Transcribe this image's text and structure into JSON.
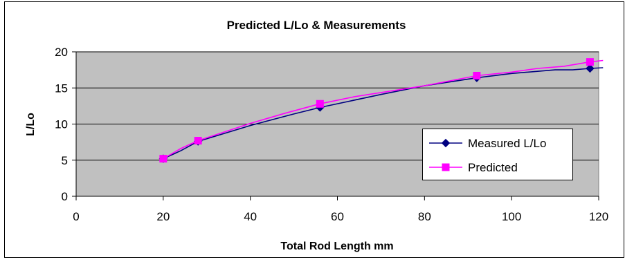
{
  "chart_data": {
    "type": "line",
    "title": "Predicted L/Lo & Measurements",
    "xlabel": "Total Rod Length mm",
    "ylabel": "L/Lo",
    "xlim": [
      0,
      120
    ],
    "ylim": [
      0,
      20
    ],
    "x_ticks": [
      0,
      20,
      40,
      60,
      80,
      100,
      120
    ],
    "y_ticks": [
      0,
      5,
      10,
      15,
      20
    ],
    "grid": "horizontal",
    "legend_position": "lower-right",
    "plot_background": "#c0c0c0",
    "series": [
      {
        "name": "Measured L/Lo",
        "color": "#000080",
        "marker": "diamond",
        "points": [
          [
            20,
            5.2
          ],
          [
            28,
            7.6
          ],
          [
            56,
            12.3
          ],
          [
            92,
            16.4
          ],
          [
            118,
            17.7
          ]
        ],
        "curve": [
          [
            20,
            5.2
          ],
          [
            24,
            6.3
          ],
          [
            28,
            7.6
          ],
          [
            40,
            9.8
          ],
          [
            50,
            11.4
          ],
          [
            56,
            12.3
          ],
          [
            70,
            14.1
          ],
          [
            80,
            15.3
          ],
          [
            92,
            16.4
          ],
          [
            100,
            17.0
          ],
          [
            110,
            17.5
          ],
          [
            114,
            17.5
          ],
          [
            118,
            17.7
          ],
          [
            121,
            17.8
          ]
        ]
      },
      {
        "name": "Predicted",
        "color": "#ff00ff",
        "marker": "square",
        "points": [
          [
            20,
            5.2
          ],
          [
            28,
            7.7
          ],
          [
            56,
            12.8
          ],
          [
            92,
            16.7
          ],
          [
            118,
            18.6
          ]
        ],
        "curve": [
          [
            20,
            5.2
          ],
          [
            24,
            6.6
          ],
          [
            28,
            7.7
          ],
          [
            40,
            10.1
          ],
          [
            48,
            11.5
          ],
          [
            56,
            12.8
          ],
          [
            64,
            13.8
          ],
          [
            80,
            15.3
          ],
          [
            92,
            16.7
          ],
          [
            100,
            17.2
          ],
          [
            106,
            17.7
          ],
          [
            112,
            18.0
          ],
          [
            118,
            18.6
          ],
          [
            121,
            18.8
          ]
        ]
      }
    ]
  }
}
